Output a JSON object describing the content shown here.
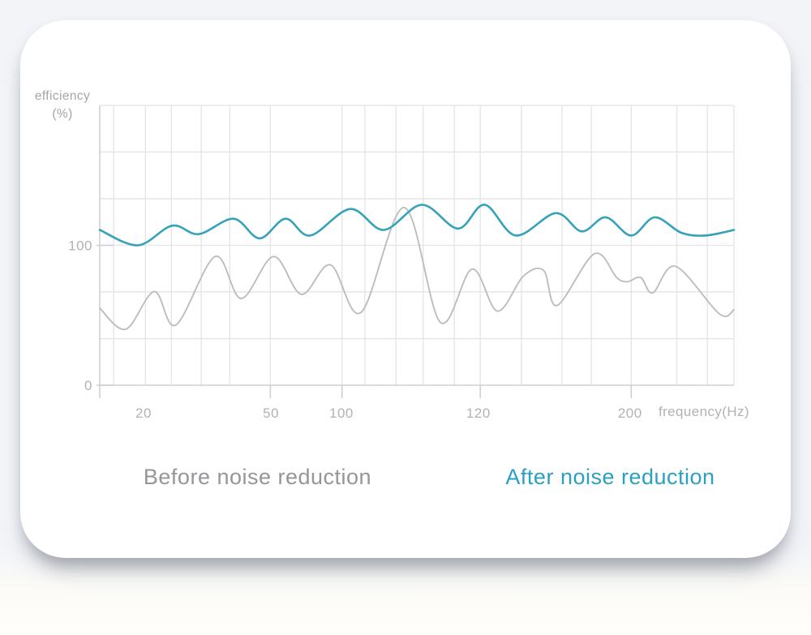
{
  "axis": {
    "y_title_line1": "efficiency",
    "y_title_line2": "(%)",
    "x_title": "frequency(Hz)"
  },
  "legend": {
    "before_label": "Before noise reduction",
    "after_label": "After noise reduction"
  },
  "colors": {
    "grid": "#e4e4e8",
    "axis": "#d3d3d7",
    "tick": "#cdcdd1",
    "tick_label": "#b2b2b5",
    "axis_title": "#a5a5a8",
    "legend_before": "#95959a",
    "legend_after": "#2b9fc4",
    "series_before": "#bdbdc0",
    "series_after": "#36a2ba",
    "card_bg": "#ffffff"
  },
  "chart_data": {
    "type": "line",
    "title": "",
    "xlabel": "frequency(Hz)",
    "ylabel": "efficiency (%)",
    "ylim": [
      0,
      200
    ],
    "grid": true,
    "legend_position": "bottom",
    "grid_y_values": [
      0,
      33.3,
      66.7,
      100,
      133.3,
      166.7,
      200
    ],
    "grid_x_pct": [
      0,
      2.2,
      7.2,
      11.3,
      16,
      20.5,
      26.9,
      38.2,
      41.8,
      46.7,
      51,
      55.9,
      60,
      66.5,
      72.9,
      77.5,
      83.8,
      91,
      95.8,
      100
    ],
    "y_ticks": [
      {
        "label": "100",
        "value": 100
      },
      {
        "label": "0",
        "value": 0
      }
    ],
    "x_ticks": [
      {
        "label": "20",
        "pct": 6.9
      },
      {
        "label": "50",
        "pct": 27.0
      },
      {
        "label": "100",
        "pct": 38.1
      },
      {
        "label": "120",
        "pct": 59.7
      },
      {
        "label": "200",
        "pct": 83.6
      }
    ],
    "x_tick_marks_pct": [
      0,
      26.9,
      38.2,
      60.0,
      83.8
    ],
    "series": [
      {
        "name": "Before noise reduction",
        "color": "#bdbdc0",
        "width": 1.9,
        "points": [
          [
            0,
            55
          ],
          [
            4.1,
            40
          ],
          [
            8.6,
            67
          ],
          [
            12,
            43
          ],
          [
            18.2,
            92
          ],
          [
            22.3,
            62
          ],
          [
            27.4,
            92
          ],
          [
            31.8,
            65
          ],
          [
            36.4,
            86
          ],
          [
            41.2,
            52
          ],
          [
            48,
            127
          ],
          [
            53.7,
            45
          ],
          [
            58.7,
            83
          ],
          [
            62.7,
            53
          ],
          [
            66.8,
            78
          ],
          [
            70,
            82
          ],
          [
            72.1,
            57
          ],
          [
            78,
            94
          ],
          [
            81.5,
            77
          ],
          [
            83.2,
            74
          ],
          [
            85.3,
            77
          ],
          [
            87.2,
            66
          ],
          [
            90.8,
            85
          ],
          [
            97.7,
            51
          ],
          [
            100,
            54
          ]
        ]
      },
      {
        "name": "After noise reduction",
        "color": "#36a2ba",
        "width": 2.6,
        "points": [
          [
            0,
            111
          ],
          [
            6,
            100
          ],
          [
            11.4,
            114
          ],
          [
            15.6,
            108
          ],
          [
            21.1,
            119
          ],
          [
            25.2,
            105
          ],
          [
            29.3,
            119
          ],
          [
            33.2,
            107
          ],
          [
            39.5,
            126
          ],
          [
            44.8,
            111
          ],
          [
            50.8,
            129
          ],
          [
            56.5,
            112
          ],
          [
            60.7,
            129
          ],
          [
            65.6,
            107
          ],
          [
            71.9,
            123
          ],
          [
            76,
            110
          ],
          [
            79.8,
            120
          ],
          [
            83.8,
            107
          ],
          [
            87.5,
            120
          ],
          [
            91.7,
            109
          ],
          [
            95.5,
            107
          ],
          [
            100,
            111
          ]
        ]
      }
    ]
  }
}
